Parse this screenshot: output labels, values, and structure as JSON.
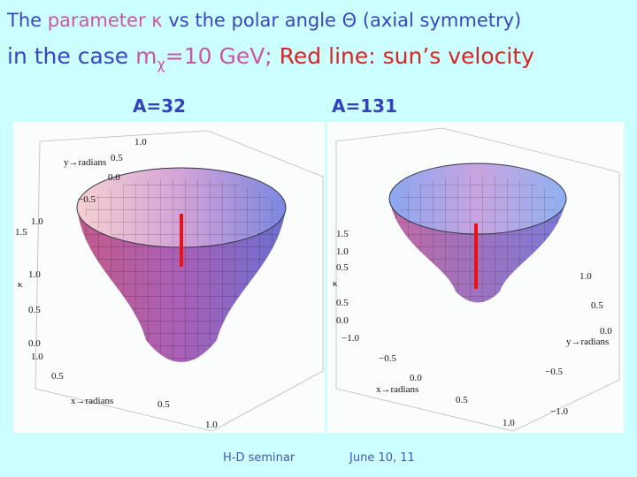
{
  "title": {
    "line1": {
      "start": "The ",
      "parameter": "parameter κ",
      "rest": " vs the polar angle Θ (axial symmetry)"
    },
    "line2": {
      "prefix": "in the case ",
      "mass": "m",
      "subscript": "χ",
      "mass_value": "=10 GeV;",
      "note": " Red line: sun’s velocity"
    }
  },
  "panels": [
    {
      "label": "A=32",
      "axis_labels": [
        "1.0",
        "y→radians",
        "0.5",
        "0.0",
        "−0.5",
        "1.0",
        "1.5",
        "κ",
        "1.0",
        "0.5",
        "0.0",
        "1.0",
        "0.5",
        "x→radians",
        "0.5",
        "1.0"
      ]
    },
    {
      "label": "A=131",
      "axis_labels": [
        "1.5",
        "1.0",
        "0.5",
        "κ",
        "0.5",
        "0.0",
        "−1.0",
        "1.0",
        "0.5",
        "0.0",
        "y→radians",
        "−0.5",
        "x→radians",
        "0.0",
        "−0.5",
        "0.5",
        "1.0",
        "−1.0"
      ]
    }
  ],
  "footer": {
    "left": "H-D seminar",
    "right": "June 10, 11"
  }
}
